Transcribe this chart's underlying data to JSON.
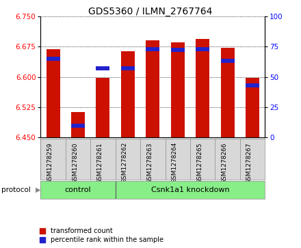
{
  "title": "GDS5360 / ILMN_2767764",
  "samples": [
    "GSM1278259",
    "GSM1278260",
    "GSM1278261",
    "GSM1278262",
    "GSM1278263",
    "GSM1278264",
    "GSM1278265",
    "GSM1278266",
    "GSM1278267"
  ],
  "transformed_counts": [
    6.668,
    6.513,
    6.597,
    6.663,
    6.69,
    6.685,
    6.693,
    6.672,
    6.597
  ],
  "percentile_ranks": [
    65,
    10,
    57,
    57,
    73,
    72,
    73,
    63,
    43
  ],
  "ylim_left": [
    6.45,
    6.75
  ],
  "ylim_right": [
    0,
    100
  ],
  "yticks_left": [
    6.45,
    6.525,
    6.6,
    6.675,
    6.75
  ],
  "yticks_right": [
    0,
    25,
    50,
    75,
    100
  ],
  "bar_color": "#cc1100",
  "percentile_color": "#2222cc",
  "bar_width": 0.55,
  "protocol_groups": [
    {
      "label": "control",
      "start": 0,
      "end": 2
    },
    {
      "label": "Csnk1a1 knockdown",
      "start": 3,
      "end": 8
    }
  ],
  "protocol_label": "protocol",
  "protocol_bg": "#88ee88",
  "sample_bg": "#d8d8d8",
  "title_fontsize": 10,
  "tick_fontsize": 7.5,
  "sample_fontsize": 6.5,
  "proto_fontsize": 8,
  "legend_fontsize": 7,
  "legend_red_label": "transformed count",
  "legend_blue_label": "percentile rank within the sample"
}
